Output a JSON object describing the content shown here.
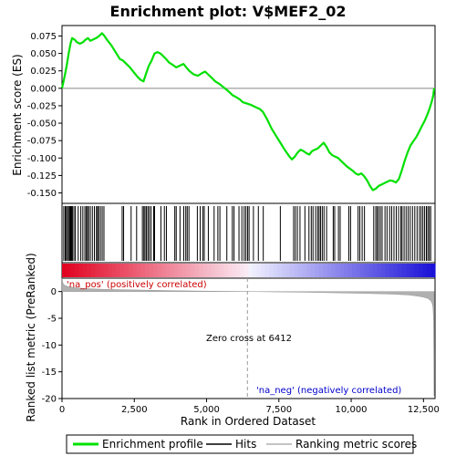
{
  "chart_data": {
    "type": "line",
    "title": "Enrichment plot: V$MEF2_02",
    "xlabel": "Rank in Ordered Dataset",
    "xlim": [
      0,
      12900
    ],
    "x_ticks": [
      0,
      2500,
      5000,
      7500,
      10000,
      12500
    ],
    "x_tick_labels": [
      "0",
      "2,500",
      "5,000",
      "7,500",
      "10,000",
      "12,500"
    ],
    "es_panel": {
      "ylabel": "Enrichment score (ES)",
      "ylim": [
        -0.165,
        0.09
      ],
      "y_ticks": [
        0.075,
        0.05,
        0.025,
        0.0,
        -0.025,
        -0.05,
        -0.075,
        -0.1,
        -0.125,
        -0.15
      ],
      "y_tick_labels": [
        "0.075",
        "0.050",
        "0.025",
        "0.000",
        "-0.025",
        "-0.050",
        "-0.075",
        "-0.100",
        "-0.125",
        "-0.150"
      ],
      "series": [
        {
          "name": "Enrichment profile",
          "color": "#00e000",
          "x": [
            0,
            80,
            150,
            230,
            300,
            350,
            430,
            520,
            620,
            720,
            820,
            900,
            980,
            1080,
            1180,
            1280,
            1380,
            1450,
            1550,
            1700,
            1850,
            2000,
            2100,
            2200,
            2350,
            2500,
            2620,
            2720,
            2820,
            2900,
            3000,
            3100,
            3200,
            3300,
            3400,
            3500,
            3600,
            3700,
            3850,
            3950,
            4100,
            4200,
            4300,
            4400,
            4550,
            4700,
            4850,
            4950,
            5050,
            5200,
            5300,
            5450,
            5600,
            5750,
            5900,
            6000,
            6150,
            6250,
            6400,
            6550,
            6700,
            6850,
            6950,
            7100,
            7250,
            7400,
            7550,
            7700,
            7850,
            7950,
            8050,
            8150,
            8250,
            8350,
            8450,
            8550,
            8650,
            8750,
            8850,
            8950,
            9050,
            9150,
            9250,
            9350,
            9450,
            9550,
            9650,
            9750,
            9850,
            9950,
            10050,
            10150,
            10250,
            10350,
            10450,
            10550,
            10650,
            10750,
            10850,
            10950,
            11050,
            11150,
            11250,
            11350,
            11450,
            11550,
            11650,
            11750,
            11850,
            11950,
            12050,
            12150,
            12250,
            12350,
            12450,
            12550,
            12650,
            12720,
            12780,
            12840,
            12870
          ],
          "y": [
            0.0,
            0.015,
            0.03,
            0.05,
            0.065,
            0.072,
            0.07,
            0.066,
            0.064,
            0.066,
            0.07,
            0.072,
            0.068,
            0.07,
            0.072,
            0.075,
            0.079,
            0.076,
            0.07,
            0.062,
            0.052,
            0.042,
            0.04,
            0.036,
            0.03,
            0.022,
            0.016,
            0.012,
            0.01,
            0.02,
            0.032,
            0.04,
            0.05,
            0.052,
            0.05,
            0.046,
            0.042,
            0.037,
            0.033,
            0.03,
            0.033,
            0.035,
            0.03,
            0.025,
            0.02,
            0.018,
            0.022,
            0.024,
            0.02,
            0.014,
            0.01,
            0.006,
            0.001,
            -0.004,
            -0.01,
            -0.012,
            -0.016,
            -0.02,
            -0.022,
            -0.024,
            -0.027,
            -0.03,
            -0.034,
            -0.045,
            -0.058,
            -0.068,
            -0.078,
            -0.088,
            -0.097,
            -0.102,
            -0.098,
            -0.092,
            -0.088,
            -0.09,
            -0.093,
            -0.095,
            -0.09,
            -0.088,
            -0.086,
            -0.082,
            -0.078,
            -0.084,
            -0.092,
            -0.096,
            -0.098,
            -0.1,
            -0.104,
            -0.108,
            -0.112,
            -0.115,
            -0.118,
            -0.122,
            -0.124,
            -0.122,
            -0.126,
            -0.132,
            -0.14,
            -0.146,
            -0.144,
            -0.14,
            -0.138,
            -0.136,
            -0.134,
            -0.132,
            -0.133,
            -0.135,
            -0.13,
            -0.118,
            -0.104,
            -0.092,
            -0.082,
            -0.076,
            -0.07,
            -0.062,
            -0.054,
            -0.046,
            -0.036,
            -0.028,
            -0.02,
            -0.01,
            0.0
          ]
        }
      ]
    },
    "hits_panel": {
      "name": "Hits",
      "color": "#000000",
      "hit_ranks": [
        60,
        110,
        150,
        190,
        230,
        270,
        300,
        330,
        360,
        410,
        460,
        560,
        650,
        720,
        790,
        840,
        880,
        920,
        980,
        1050,
        1120,
        1190,
        1230,
        1270,
        1330,
        1390,
        1450,
        2080,
        2130,
        2390,
        2580,
        2780,
        2830,
        2870,
        2920,
        2970,
        3020,
        3080,
        3170,
        3200,
        3420,
        3540,
        3610,
        3900,
        3950,
        4080,
        4210,
        4280,
        4330,
        4390,
        4680,
        4780,
        4870,
        4920,
        5060,
        5260,
        5390,
        5460,
        5700,
        5890,
        5950,
        6120,
        6220,
        6300,
        6360,
        6420,
        6470,
        6620,
        6790,
        6960,
        7550,
        8010,
        8070,
        8140,
        8230,
        8400,
        8540,
        8620,
        8680,
        8770,
        8840,
        8890,
        8940,
        9000,
        9060,
        9150,
        9380,
        9430,
        9560,
        9620,
        9920,
        9980,
        10240,
        10300,
        10380,
        10460,
        10780,
        10850,
        10900,
        10950,
        11010,
        11070,
        11170,
        11240,
        11330,
        11400,
        11480,
        11560,
        11640,
        11720,
        11760,
        11830,
        11900,
        11970,
        12040,
        12120,
        12200,
        12280,
        12360,
        12420,
        12480,
        12540,
        12600,
        12650,
        12700,
        12750
      ]
    },
    "metric_panel": {
      "ylabel": "Ranked list metric (PreRanked)",
      "ylim": [
        -20,
        2.5
      ],
      "y_ticks": [
        0,
        -5,
        -10,
        -15,
        -20
      ],
      "y_tick_labels": [
        "0",
        "-5",
        "-10",
        "-15",
        "-20"
      ],
      "series": [
        {
          "name": "Ranking metric scores",
          "color": "#b0b0b0",
          "x": [
            0,
            30,
            80,
            200,
            400,
            800,
            1500,
            2500,
            3500,
            4500,
            5500,
            6412,
            7500,
            8500,
            9500,
            10500,
            11500,
            12000,
            12300,
            12500,
            12650,
            12750,
            12800,
            12830,
            12850,
            12870
          ],
          "y": [
            2.5,
            1.6,
            1.2,
            0.95,
            0.75,
            0.55,
            0.4,
            0.3,
            0.2,
            0.12,
            0.05,
            0.0,
            -0.08,
            -0.15,
            -0.25,
            -0.35,
            -0.5,
            -0.65,
            -0.85,
            -1.05,
            -1.3,
            -1.7,
            -2.2,
            -3.0,
            -5.5,
            -19.5
          ]
        }
      ],
      "annotations": [
        {
          "text": "'na_pos' (positively correlated)",
          "color": "#cc0000"
        },
        {
          "text": "Zero cross at 6412",
          "color": "#000000"
        },
        {
          "text": "'na_neg' (negatively correlated)",
          "color": "#0000cc"
        }
      ],
      "zero_cross": 6412
    },
    "legend": [
      {
        "label": "Enrichment profile",
        "color": "#00e000"
      },
      {
        "label": "Hits",
        "color": "#000000"
      },
      {
        "label": "Ranking metric scores",
        "color": "#b0b0b0"
      }
    ]
  }
}
